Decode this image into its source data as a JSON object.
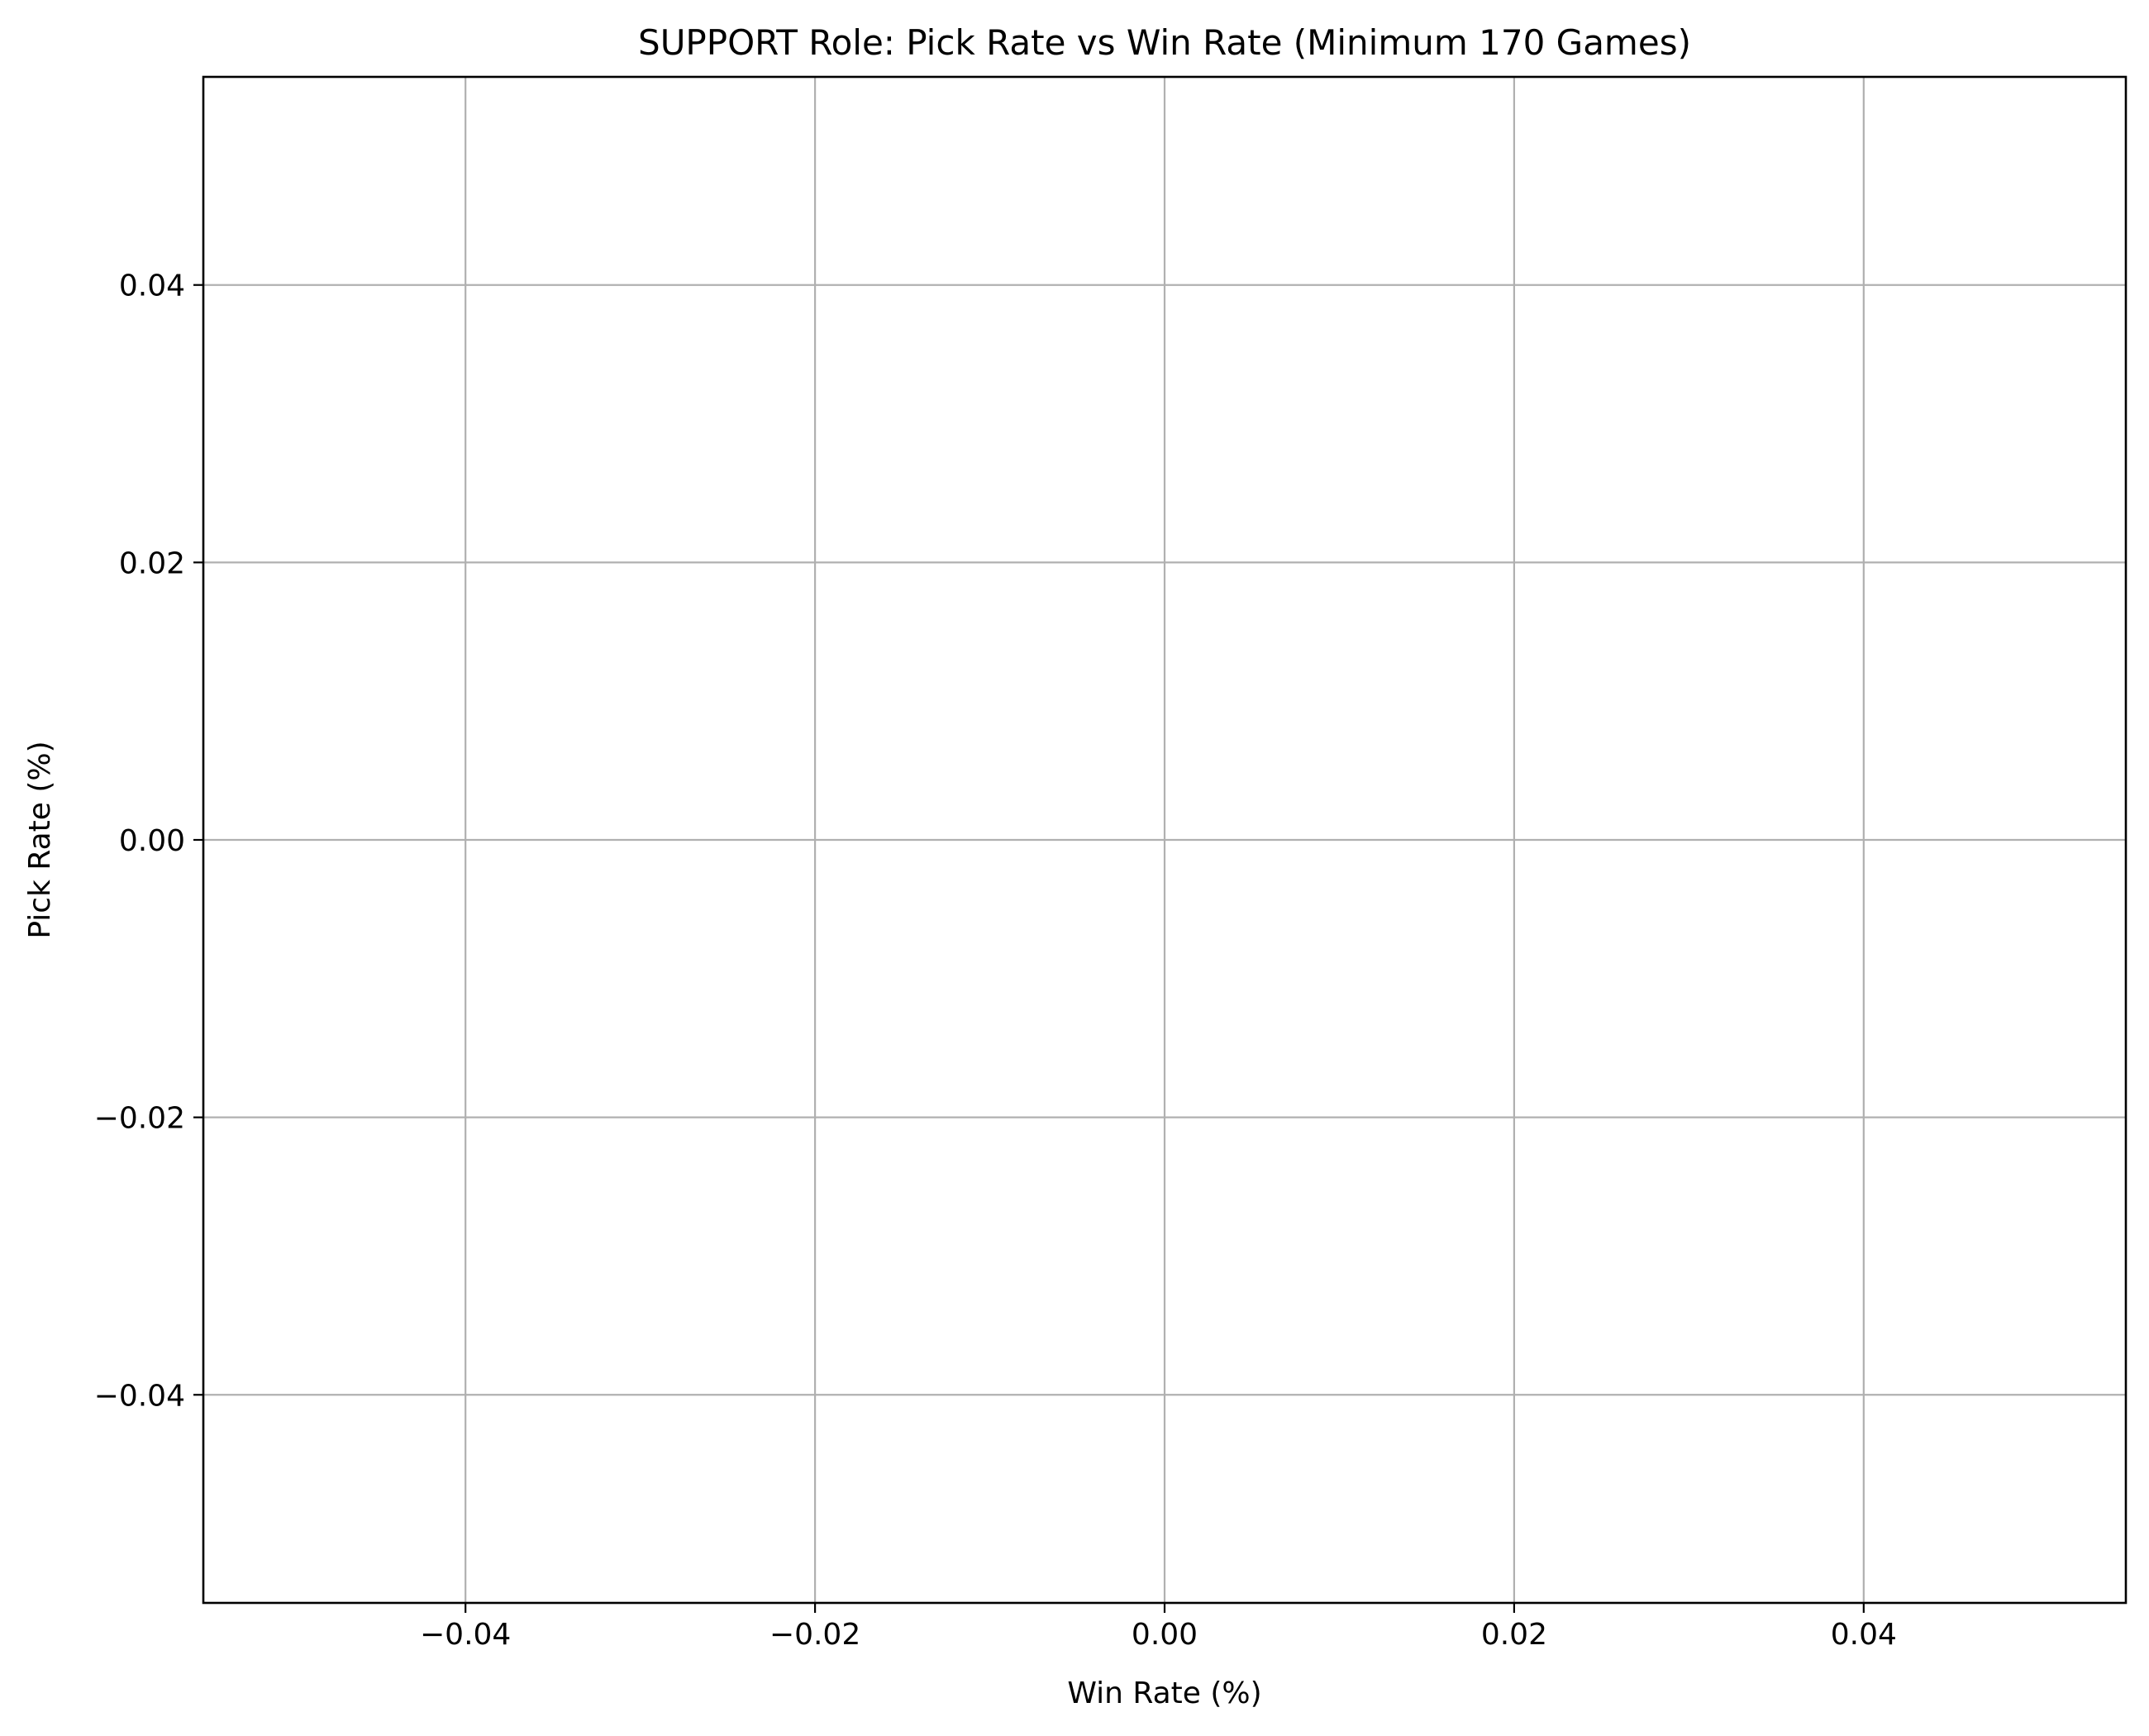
{
  "chart_data": {
    "type": "scatter",
    "title": "SUPPORT Role: Pick Rate vs Win Rate (Minimum 170 Games)",
    "xlabel": "Win Rate (%)",
    "ylabel": "Pick Rate (%)",
    "xlim": [
      -0.055,
      0.055
    ],
    "ylim": [
      -0.055,
      0.055
    ],
    "x_ticks": [
      -0.04,
      -0.02,
      0.0,
      0.02,
      0.04
    ],
    "y_ticks": [
      -0.04,
      -0.02,
      0.0,
      0.02,
      0.04
    ],
    "x_tick_labels": [
      "−0.04",
      "−0.02",
      "0.00",
      "0.02",
      "0.04"
    ],
    "y_tick_labels": [
      "−0.04",
      "−0.02",
      "0.00",
      "0.02",
      "0.04"
    ],
    "grid": true,
    "points": [],
    "colors": {
      "grid": "#b0b0b0",
      "axes": "#000000",
      "background": "#ffffff"
    }
  }
}
